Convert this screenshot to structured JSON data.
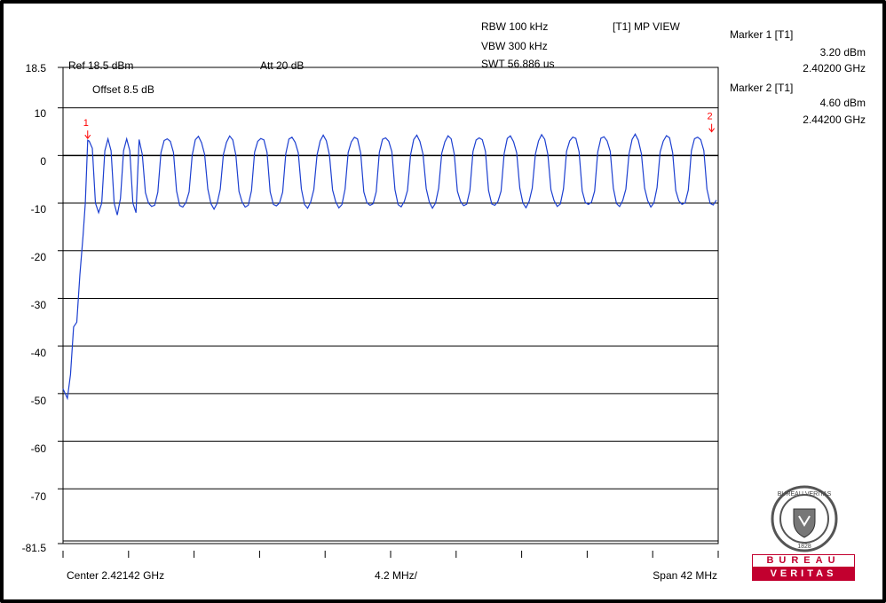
{
  "header": {
    "ref": "Ref 18.5 dBm",
    "att": "Att  20 dB",
    "offset": "Offset 8.5 dB",
    "rbw": "RBW 100 kHz",
    "vbw": "VBW 300 kHz",
    "swt": "SWT 56.886 us",
    "view": "[T1] MP VIEW"
  },
  "markers": [
    {
      "label": "Marker 1 [T1]",
      "level": "3.20 dBm",
      "freq": "2.40200 GHz",
      "num": "1"
    },
    {
      "label": "Marker 2 [T1]",
      "level": "4.60 dBm",
      "freq": "2.44200 GHz",
      "num": "2"
    }
  ],
  "footer": {
    "center": "Center 2.42142 GHz",
    "div": "4.2 MHz/",
    "span": "Span 42 MHz"
  },
  "logo": {
    "top_text": "BUREAU",
    "bottom_text": "VERITAS",
    "seal_text": "BUREAU VERITAS",
    "seal_year": "1828",
    "brand_color": "#c2002f"
  },
  "colors": {
    "trace": "#1c3fd0",
    "marker": "#ff0000",
    "grid": "#000000"
  },
  "chart_data": {
    "type": "line",
    "title": "",
    "xlabel": "",
    "ylabel": "",
    "unit_y": "dBm",
    "xlim": [
      2.40042,
      2.44242
    ],
    "ylim": [
      -81.5,
      18.5
    ],
    "y_ticks": [
      18.5,
      10,
      0,
      -10,
      -20,
      -30,
      -40,
      -50,
      -60,
      -70,
      -81.5
    ],
    "y_tick_labels": [
      "18.5",
      "10",
      "0",
      "-10",
      "-20",
      "-30",
      "-40",
      "-50",
      "-60",
      "-70",
      "-81.5"
    ],
    "grid": true,
    "series": [
      {
        "x": [
          2.40042,
          2.4007,
          2.4009,
          2.4011,
          2.4013,
          2.4015,
          2.4017,
          2.40185,
          2.402,
          2.4021,
          2.4023,
          2.4025,
          2.4027,
          2.4029,
          2.4031,
          2.4033,
          2.4035,
          2.4037,
          2.4039,
          2.4041,
          2.4043,
          2.4045,
          2.4047,
          2.4049,
          2.4051
        ],
        "y": [
          -49,
          -51,
          -46,
          -36,
          -35,
          -25,
          -17,
          -10,
          3.2,
          3.0,
          1.5,
          -10,
          -12,
          -10,
          1,
          3.5,
          1,
          -10,
          -12.5,
          -9,
          1,
          3.5,
          1,
          -10,
          -12
        ]
      }
    ],
    "ripple": {
      "start_x": 2.4051,
      "end_x": 2.44242,
      "period_x": 0.002,
      "peak_y": 3.8,
      "trough_y": -11,
      "peak_y_end": 4.2,
      "trough_y_end": -10.5
    },
    "markers": [
      {
        "num": "1",
        "x": 2.402,
        "y": 3.2
      },
      {
        "num": "2",
        "x": 2.442,
        "y": 4.6
      }
    ]
  }
}
